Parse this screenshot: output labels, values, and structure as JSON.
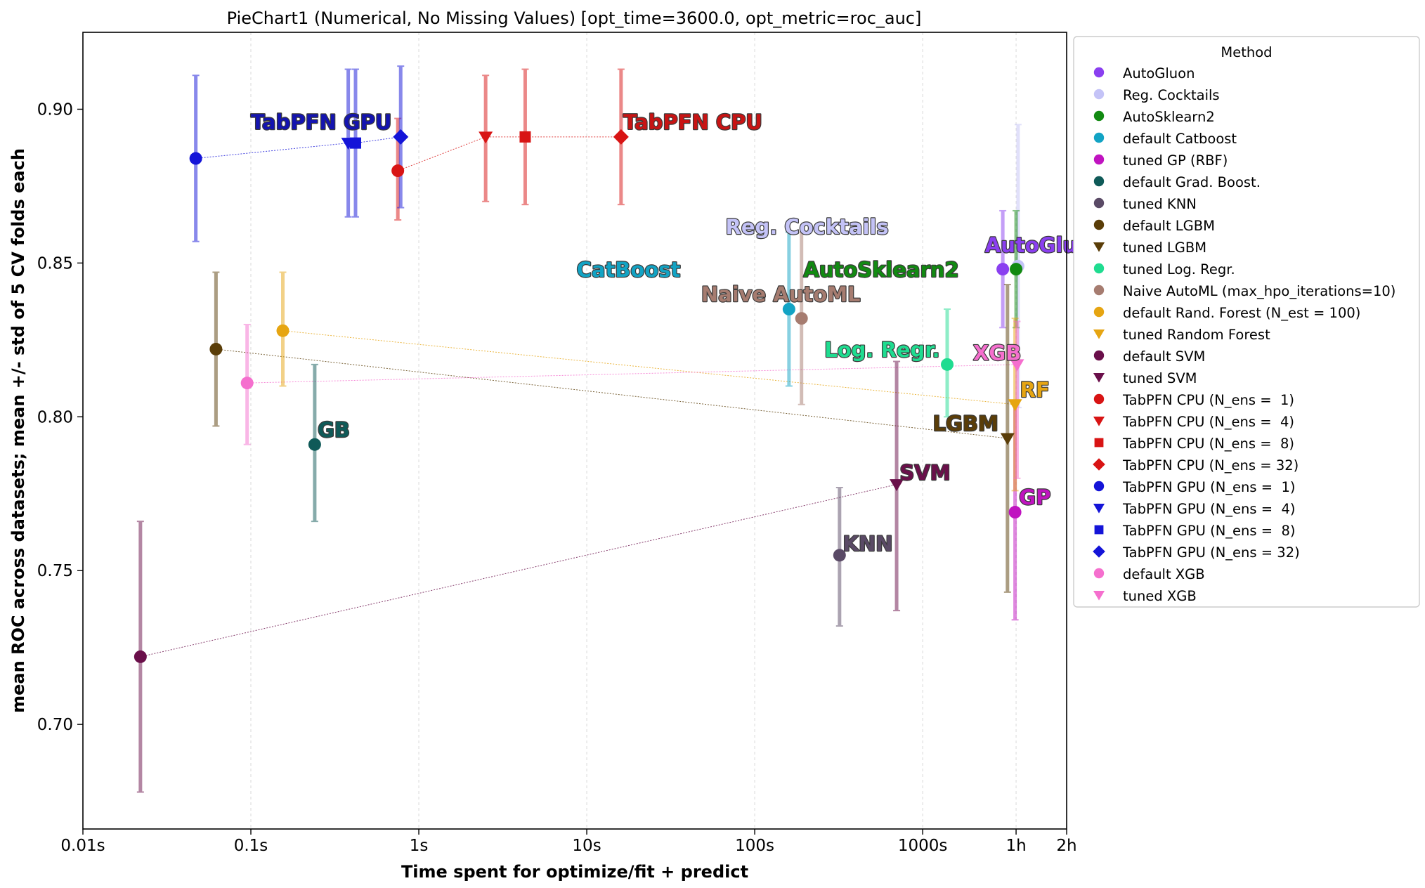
{
  "chart_data": {
    "type": "scatter",
    "title": "PieChart1 (Numerical, No Missing Values) [opt_time=3600.0, opt_metric=roc_auc]",
    "xlabel": "Time spent for optimize/fit + predict",
    "ylabel": "mean ROC across datasets; mean +/- std of 5 CV folds each",
    "xscale": "log",
    "xlim": [
      0.01,
      7200
    ],
    "ylim": [
      0.666,
      0.925
    ],
    "x_ticks": [
      {
        "value": 0.01,
        "label": "0.01s"
      },
      {
        "value": 0.1,
        "label": "0.1s"
      },
      {
        "value": 1,
        "label": "1s"
      },
      {
        "value": 10,
        "label": "10s"
      },
      {
        "value": 100,
        "label": "100s"
      },
      {
        "value": 1000,
        "label": "1000s"
      },
      {
        "value": 3600,
        "label": "1h"
      },
      {
        "value": 7200,
        "label": "2h"
      }
    ],
    "y_ticks": [
      {
        "value": 0.7,
        "label": "0.70"
      },
      {
        "value": 0.75,
        "label": "0.75"
      },
      {
        "value": 0.8,
        "label": "0.80"
      },
      {
        "value": 0.85,
        "label": "0.85"
      },
      {
        "value": 0.9,
        "label": "0.90"
      }
    ],
    "grid": "vertical dotted",
    "legend": {
      "title": "Method",
      "placement": "outside right",
      "entries": [
        {
          "label": "AutoGluon",
          "color": "#8a3ff0",
          "marker": "circle"
        },
        {
          "label": "Reg. Cocktails",
          "color": "#c4c3f7",
          "marker": "circle"
        },
        {
          "label": "AutoSklearn2",
          "color": "#128a12",
          "marker": "circle"
        },
        {
          "label": "default Catboost",
          "color": "#12a3c4",
          "marker": "circle"
        },
        {
          "label": "tuned GP (RBF)",
          "color": "#c013c0",
          "marker": "circle"
        },
        {
          "label": "default Grad. Boost.",
          "color": "#0f5a58",
          "marker": "circle"
        },
        {
          "label": "tuned KNN",
          "color": "#5a4a66",
          "marker": "circle"
        },
        {
          "label": "default LGBM",
          "color": "#5a3d08",
          "marker": "circle"
        },
        {
          "label": "tuned LGBM",
          "color": "#5a3d08",
          "marker": "triangle"
        },
        {
          "label": "tuned Log. Regr.",
          "color": "#1fdc90",
          "marker": "circle"
        },
        {
          "label": "Naive AutoML (max_hpo_iterations=10)",
          "color": "#a67c70",
          "marker": "circle"
        },
        {
          "label": "default Rand. Forest (N_est = 100)",
          "color": "#e6a512",
          "marker": "circle"
        },
        {
          "label": "tuned Random Forest",
          "color": "#e6a512",
          "marker": "triangle"
        },
        {
          "label": "default SVM",
          "color": "#6a0f4a",
          "marker": "circle"
        },
        {
          "label": "tuned SVM",
          "color": "#6a0f4a",
          "marker": "triangle"
        },
        {
          "label": "TabPFN CPU (N_ens =  1)",
          "color": "#d81414",
          "marker": "circle"
        },
        {
          "label": "TabPFN CPU (N_ens =  4)",
          "color": "#d81414",
          "marker": "triangle"
        },
        {
          "label": "TabPFN CPU (N_ens =  8)",
          "color": "#d81414",
          "marker": "square"
        },
        {
          "label": "TabPFN CPU (N_ens = 32)",
          "color": "#d81414",
          "marker": "diamond"
        },
        {
          "label": "TabPFN GPU (N_ens =  1)",
          "color": "#1414d8",
          "marker": "circle"
        },
        {
          "label": "TabPFN GPU (N_ens =  4)",
          "color": "#1414d8",
          "marker": "triangle"
        },
        {
          "label": "TabPFN GPU (N_ens =  8)",
          "color": "#1414d8",
          "marker": "square"
        },
        {
          "label": "TabPFN GPU (N_ens = 32)",
          "color": "#1414d8",
          "marker": "diamond"
        },
        {
          "label": "default XGB",
          "color": "#f56fce",
          "marker": "circle"
        },
        {
          "label": "tuned XGB",
          "color": "#f56fce",
          "marker": "triangle"
        }
      ]
    },
    "series": [
      {
        "method": "AutoGluon",
        "x": 3000,
        "y": 0.848,
        "err_low": 0.829,
        "err_high": 0.867,
        "color": "#8a3ff0",
        "marker": "circle"
      },
      {
        "method": "Reg. Cocktails",
        "x": 3700,
        "y": 0.849,
        "err_low": 0.803,
        "err_high": 0.895,
        "color": "#c4c3f7",
        "marker": "circle"
      },
      {
        "method": "AutoSklearn2",
        "x": 3600,
        "y": 0.848,
        "err_low": 0.829,
        "err_high": 0.867,
        "color": "#128a12",
        "marker": "circle"
      },
      {
        "method": "default Catboost",
        "x": 160,
        "y": 0.835,
        "err_low": 0.81,
        "err_high": 0.86,
        "color": "#12a3c4",
        "marker": "circle"
      },
      {
        "method": "tuned GP (RBF)",
        "x": 3550,
        "y": 0.769,
        "err_low": 0.734,
        "err_high": 0.804,
        "color": "#c013c0",
        "marker": "circle"
      },
      {
        "method": "default Grad. Boost.",
        "x": 0.24,
        "y": 0.791,
        "err_low": 0.766,
        "err_high": 0.817,
        "color": "#0f5a58",
        "marker": "circle"
      },
      {
        "method": "tuned KNN",
        "x": 320,
        "y": 0.755,
        "err_low": 0.732,
        "err_high": 0.777,
        "color": "#5a4a66",
        "marker": "circle"
      },
      {
        "method": "default LGBM",
        "x": 0.062,
        "y": 0.822,
        "err_low": 0.797,
        "err_high": 0.847,
        "color": "#5a3d08",
        "marker": "circle"
      },
      {
        "method": "tuned LGBM",
        "x": 3200,
        "y": 0.793,
        "err_low": 0.743,
        "err_high": 0.843,
        "color": "#5a3d08",
        "marker": "triangle"
      },
      {
        "method": "tuned Log. Regr.",
        "x": 1400,
        "y": 0.817,
        "err_low": 0.8,
        "err_high": 0.835,
        "color": "#1fdc90",
        "marker": "circle"
      },
      {
        "method": "Naive AutoML (max_hpo_iterations=10)",
        "x": 190,
        "y": 0.832,
        "err_low": 0.804,
        "err_high": 0.86,
        "color": "#a67c70",
        "marker": "circle"
      },
      {
        "method": "default Rand. Forest (N_est = 100)",
        "x": 0.155,
        "y": 0.828,
        "err_low": 0.81,
        "err_high": 0.847,
        "color": "#e6a512",
        "marker": "circle"
      },
      {
        "method": "tuned Random Forest",
        "x": 3550,
        "y": 0.804,
        "err_low": 0.776,
        "err_high": 0.832,
        "color": "#e6a512",
        "marker": "triangle"
      },
      {
        "method": "default SVM",
        "x": 0.022,
        "y": 0.722,
        "err_low": 0.678,
        "err_high": 0.766,
        "color": "#6a0f4a",
        "marker": "circle"
      },
      {
        "method": "tuned SVM",
        "x": 700,
        "y": 0.778,
        "err_low": 0.737,
        "err_high": 0.818,
        "color": "#6a0f4a",
        "marker": "triangle"
      },
      {
        "method": "TabPFN CPU (N_ens =  1)",
        "x": 0.75,
        "y": 0.88,
        "err_low": 0.864,
        "err_high": 0.897,
        "color": "#d81414",
        "marker": "circle"
      },
      {
        "method": "TabPFN CPU (N_ens =  4)",
        "x": 2.5,
        "y": 0.891,
        "err_low": 0.87,
        "err_high": 0.911,
        "color": "#d81414",
        "marker": "triangle"
      },
      {
        "method": "TabPFN CPU (N_ens =  8)",
        "x": 4.3,
        "y": 0.891,
        "err_low": 0.869,
        "err_high": 0.913,
        "color": "#d81414",
        "marker": "square"
      },
      {
        "method": "TabPFN CPU (N_ens = 32)",
        "x": 16,
        "y": 0.891,
        "err_low": 0.869,
        "err_high": 0.913,
        "color": "#d81414",
        "marker": "diamond"
      },
      {
        "method": "TabPFN GPU (N_ens =  1)",
        "x": 0.047,
        "y": 0.884,
        "err_low": 0.857,
        "err_high": 0.911,
        "color": "#1414d8",
        "marker": "circle"
      },
      {
        "method": "TabPFN GPU (N_ens =  4)",
        "x": 0.38,
        "y": 0.889,
        "err_low": 0.865,
        "err_high": 0.913,
        "color": "#1414d8",
        "marker": "triangle"
      },
      {
        "method": "TabPFN GPU (N_ens =  8)",
        "x": 0.42,
        "y": 0.889,
        "err_low": 0.865,
        "err_high": 0.913,
        "color": "#1414d8",
        "marker": "square"
      },
      {
        "method": "TabPFN GPU (N_ens = 32)",
        "x": 0.78,
        "y": 0.891,
        "err_low": 0.868,
        "err_high": 0.914,
        "color": "#1414d8",
        "marker": "diamond"
      },
      {
        "method": "default XGB",
        "x": 0.095,
        "y": 0.811,
        "err_low": 0.791,
        "err_high": 0.83,
        "color": "#f56fce",
        "marker": "circle"
      },
      {
        "method": "tuned XGB",
        "x": 3650,
        "y": 0.817,
        "err_low": 0.78,
        "err_high": 0.831,
        "color": "#f56fce",
        "marker": "triangle"
      }
    ],
    "connectors": [
      {
        "from": "TabPFN GPU (N_ens =  1)",
        "to": "TabPFN GPU (N_ens = 32)",
        "color": "#1414d8"
      },
      {
        "from": "TabPFN CPU (N_ens =  1)",
        "to": "TabPFN CPU (N_ens = 32)",
        "color": "#d81414"
      },
      {
        "from": "default SVM",
        "to": "tuned SVM",
        "color": "#6a0f4a"
      },
      {
        "from": "default LGBM",
        "to": "tuned LGBM",
        "color": "#5a3d08"
      },
      {
        "from": "default Rand. Forest (N_est = 100)",
        "to": "tuned Random Forest",
        "color": "#e6a512"
      },
      {
        "from": "default XGB",
        "to": "tuned XGB",
        "color": "#f56fce"
      }
    ],
    "annotations": [
      {
        "text": "TabPFN GPU",
        "x": 0.1,
        "y": 0.8935,
        "color": "#1414b0",
        "anchor": "start"
      },
      {
        "text": "TabPFN CPU",
        "x": 16.5,
        "y": 0.8935,
        "color": "#c81414",
        "anchor": "start"
      },
      {
        "text": "Reg. Cocktails",
        "x": 67,
        "y": 0.8595,
        "color": "#c4c3f7",
        "anchor": "start"
      },
      {
        "text": "AutoGluon",
        "x": 2350,
        "y": 0.8535,
        "color": "#8a3ff0",
        "anchor": "start"
      },
      {
        "text": "CatBoost",
        "x": 8.7,
        "y": 0.8455,
        "color": "#12a3c4",
        "anchor": "start"
      },
      {
        "text": "AutoSklearn2",
        "x": 195,
        "y": 0.8455,
        "color": "#128a12",
        "anchor": "start"
      },
      {
        "text": "Naive AutoML",
        "x": 48,
        "y": 0.8375,
        "color": "#a67c70",
        "anchor": "start"
      },
      {
        "text": "Log. Regr.",
        "x": 260,
        "y": 0.8195,
        "color": "#1fdc90",
        "anchor": "start"
      },
      {
        "text": "XGB",
        "x": 2000,
        "y": 0.8185,
        "color": "#f56fce",
        "anchor": "start"
      },
      {
        "text": "RF",
        "x": 3800,
        "y": 0.8065,
        "color": "#e6a512",
        "anchor": "start"
      },
      {
        "text": "GB",
        "x": 0.25,
        "y": 0.7935,
        "color": "#0f5a58",
        "anchor": "start"
      },
      {
        "text": "LGBM",
        "x": 1150,
        "y": 0.7955,
        "color": "#5a3d08",
        "anchor": "start"
      },
      {
        "text": "SVM",
        "x": 730,
        "y": 0.7795,
        "color": "#6a0f4a",
        "anchor": "start"
      },
      {
        "text": "GP",
        "x": 3750,
        "y": 0.7715,
        "color": "#c013c0",
        "anchor": "start"
      },
      {
        "text": "KNN",
        "x": 335,
        "y": 0.7565,
        "color": "#5a4a66",
        "anchor": "start"
      }
    ]
  }
}
